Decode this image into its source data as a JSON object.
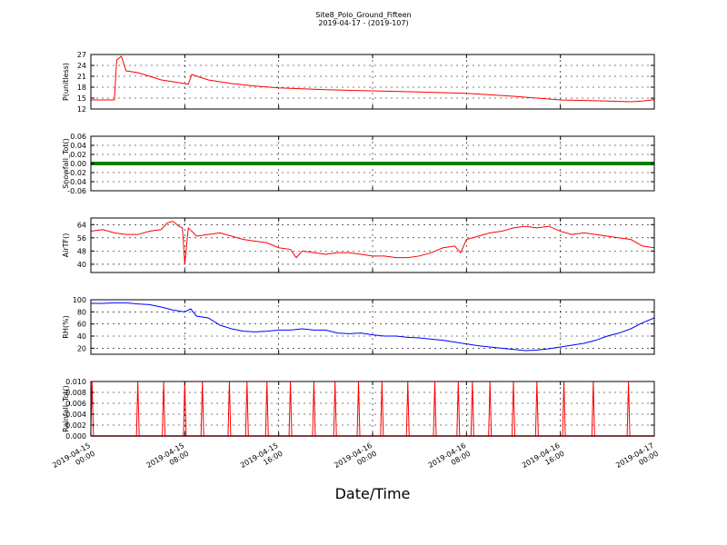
{
  "figure": {
    "title": "Site8_Polo_Ground_Fifteen",
    "subtitle": "2019-04-17 - (2019-107)",
    "xlabel": "Date/Time",
    "x_ticks": [
      "2019-04-15\n00:00",
      "2019-04-15\n08:00",
      "2019-04-15\n16:00",
      "2019-04-16\n00:00",
      "2019-04-16\n08:00",
      "2019-04-16\n16:00",
      "2019-04-17\n00:00"
    ]
  },
  "chart_data": [
    {
      "type": "line",
      "ylabel": "P(unitless)",
      "color": "#ff0000",
      "ylim": [
        12,
        27
      ],
      "yticks": [
        12,
        15,
        18,
        21,
        24,
        27
      ],
      "x_unit": "hours since 2019-04-15 00:00",
      "x": [
        0,
        2,
        2.2,
        2.6,
        3,
        4,
        6,
        8,
        8.3,
        8.6,
        10,
        12,
        14,
        16,
        20,
        24,
        28,
        32,
        36,
        40,
        44,
        46,
        47,
        48
      ],
      "y": [
        14.5,
        14.5,
        25.5,
        26.5,
        22.5,
        22,
        20,
        19,
        18.8,
        21.5,
        20,
        19,
        18.3,
        17.8,
        17.3,
        17,
        16.7,
        16.3,
        15.5,
        14.5,
        14.2,
        14,
        14.2,
        14.6
      ]
    },
    {
      "type": "line",
      "ylabel": "Snowfall_Tot()",
      "color": "#008000",
      "ylim": [
        -0.06,
        0.06
      ],
      "yticks": [
        -0.06,
        -0.04,
        -0.02,
        0.0,
        0.02,
        0.04,
        0.06
      ],
      "x": [
        0,
        48
      ],
      "y": [
        0.0,
        0.0
      ]
    },
    {
      "type": "line",
      "ylabel": "AirTF()",
      "color": "#ff0000",
      "ylim": [
        35,
        68
      ],
      "yticks": [
        40,
        48,
        56,
        64
      ],
      "x": [
        0,
        1,
        2,
        3,
        4,
        5,
        6,
        6.5,
        7,
        7.5,
        7.8,
        8,
        8.3,
        8.6,
        9,
        10,
        11,
        12,
        13,
        14,
        15,
        16,
        17,
        17.5,
        18,
        19,
        20,
        21,
        22,
        23,
        24,
        25,
        26,
        27,
        28,
        29,
        30,
        31,
        31.5,
        32,
        33,
        34,
        35,
        36,
        37,
        38,
        39,
        40,
        41,
        42,
        43,
        44,
        45,
        46,
        47,
        48
      ],
      "y": [
        60,
        61,
        59,
        58,
        58,
        60,
        61,
        65,
        66,
        63,
        62,
        40,
        62,
        60,
        57,
        58,
        59,
        57,
        55,
        54,
        53,
        50,
        49,
        44,
        48,
        47,
        46,
        47,
        47,
        46,
        45,
        45,
        44,
        44,
        45,
        47,
        50,
        51,
        47,
        55,
        57,
        59,
        60,
        62,
        63,
        62,
        63,
        60,
        58,
        59,
        58,
        57,
        56,
        55,
        51,
        50
      ]
    },
    {
      "type": "line",
      "ylabel": "RH(%)",
      "color": "#0000ff",
      "ylim": [
        10,
        100
      ],
      "yticks": [
        20,
        40,
        60,
        80,
        100
      ],
      "x": [
        0,
        1,
        2,
        3,
        4,
        5,
        6,
        7,
        8,
        8.5,
        9,
        10,
        11,
        12,
        13,
        14,
        15,
        16,
        17,
        18,
        19,
        20,
        21,
        22,
        23,
        24,
        25,
        26,
        27,
        28,
        29,
        30,
        31,
        32,
        33,
        34,
        35,
        36,
        37,
        38,
        39,
        40,
        41,
        42,
        43,
        44,
        45,
        46,
        47,
        48
      ],
      "y": [
        94,
        94,
        95,
        95,
        93,
        92,
        88,
        83,
        80,
        85,
        73,
        70,
        58,
        52,
        48,
        47,
        48,
        50,
        50,
        52,
        50,
        50,
        45,
        44,
        45,
        42,
        40,
        40,
        38,
        37,
        35,
        33,
        30,
        27,
        24,
        22,
        20,
        18,
        16,
        17,
        19,
        22,
        25,
        28,
        33,
        40,
        45,
        52,
        62,
        70
      ]
    },
    {
      "type": "bar",
      "ylabel": "Rainfall_Tot()",
      "color": "#ff0000",
      "ylim": [
        0.0,
        0.01
      ],
      "yticks": [
        0.0,
        0.002,
        0.004,
        0.006,
        0.008,
        0.01
      ],
      "x": [
        0.1,
        4,
        6.2,
        8,
        9.5,
        11.8,
        13.3,
        15,
        17,
        19,
        20.8,
        22.8,
        24.8,
        27,
        29.3,
        31.3,
        32.5,
        34,
        36,
        38,
        40.3,
        42.8,
        45.8
      ],
      "y": [
        0.01,
        0.01,
        0.01,
        0.01,
        0.01,
        0.01,
        0.01,
        0.01,
        0.01,
        0.01,
        0.01,
        0.01,
        0.01,
        0.01,
        0.01,
        0.01,
        0.01,
        0.01,
        0.01,
        0.01,
        0.01,
        0.01,
        0.01
      ]
    }
  ]
}
